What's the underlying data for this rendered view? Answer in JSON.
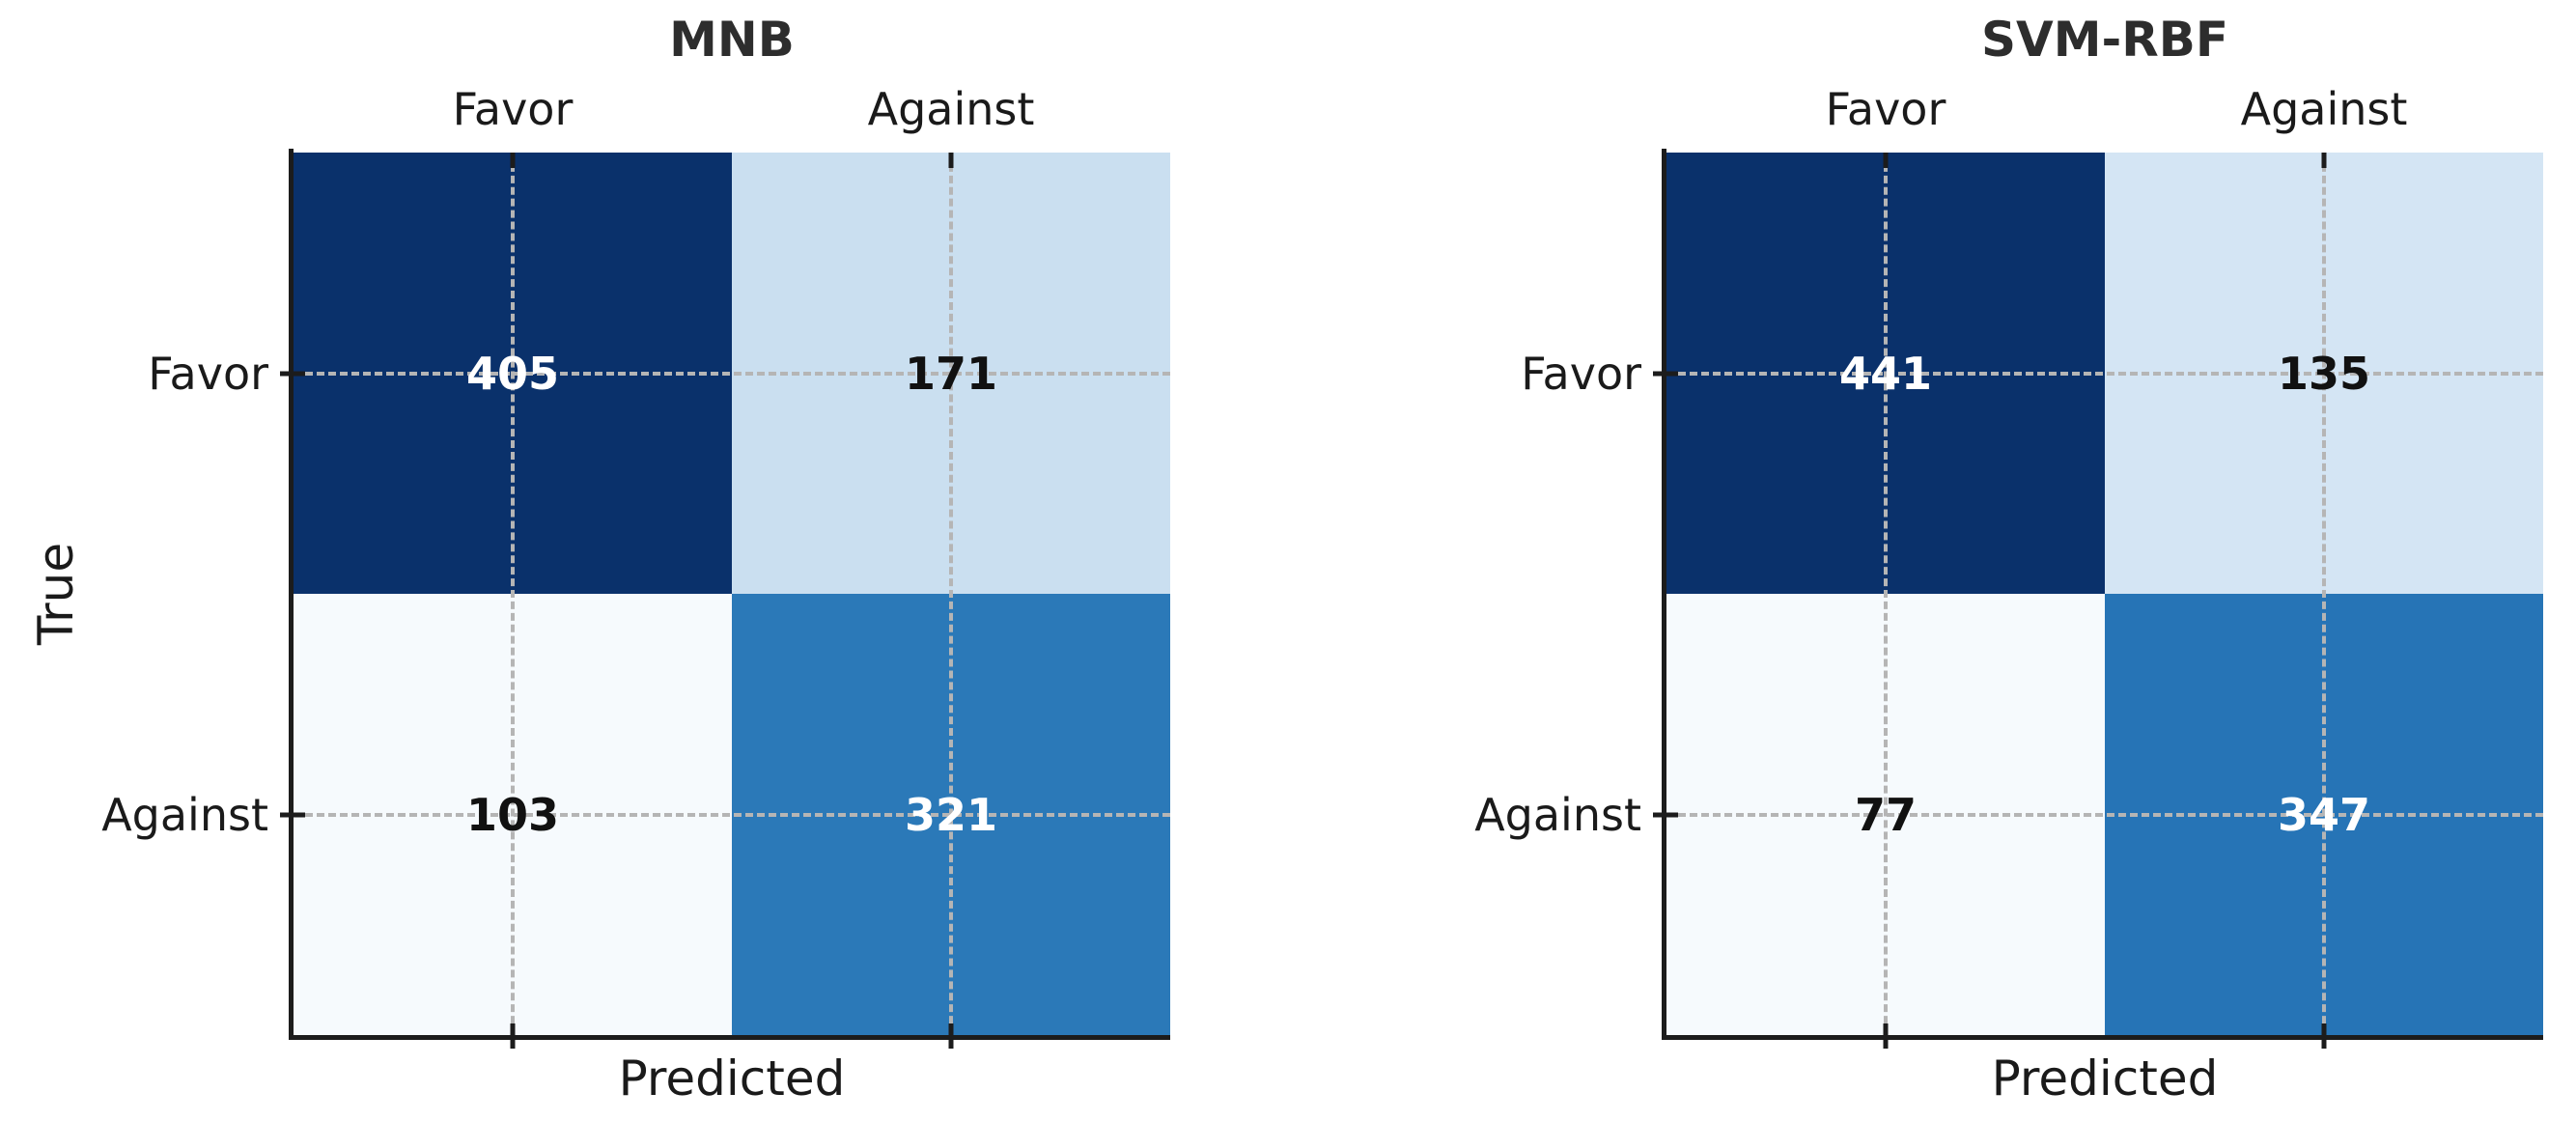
{
  "figure": {
    "background": "#ffffff",
    "spine_color": "#1c1c1c",
    "grid_color": "#b5b5b5",
    "label_color": "#1a1a1a",
    "title_color": "#2d2d2d",
    "colormap": "Blues"
  },
  "chart_data": [
    {
      "type": "heatmap",
      "title": "MNB",
      "xlabel": "Predicted",
      "ylabel": "True",
      "x_tick_labels": [
        "Favor",
        "Against"
      ],
      "y_tick_labels": [
        "Favor",
        "Against"
      ],
      "rows": [
        "Favor",
        "Against"
      ],
      "cols": [
        "Favor",
        "Against"
      ],
      "matrix": [
        [
          405,
          171
        ],
        [
          103,
          321
        ]
      ],
      "grid": true,
      "legend": false,
      "cells": [
        {
          "row": "Favor",
          "col": "Favor",
          "value": 405,
          "bg": "#0a316b",
          "fg": "#ffffff"
        },
        {
          "row": "Favor",
          "col": "Against",
          "value": 171,
          "bg": "#cadff0",
          "fg": "#111111"
        },
        {
          "row": "Against",
          "col": "Favor",
          "value": 103,
          "bg": "#f6fafd",
          "fg": "#111111"
        },
        {
          "row": "Against",
          "col": "Against",
          "value": 321,
          "bg": "#2b79b8",
          "fg": "#ffffff"
        }
      ]
    },
    {
      "type": "heatmap",
      "title": "SVM-RBF",
      "xlabel": "Predicted",
      "ylabel": "",
      "x_tick_labels": [
        "Favor",
        "Against"
      ],
      "y_tick_labels": [
        "Favor",
        "Against"
      ],
      "rows": [
        "Favor",
        "Against"
      ],
      "cols": [
        "Favor",
        "Against"
      ],
      "matrix": [
        [
          441,
          135
        ],
        [
          77,
          347
        ]
      ],
      "grid": true,
      "legend": false,
      "cells": [
        {
          "row": "Favor",
          "col": "Favor",
          "value": 441,
          "bg": "#0a316b",
          "fg": "#ffffff"
        },
        {
          "row": "Favor",
          "col": "Against",
          "value": 135,
          "bg": "#d4e5f4",
          "fg": "#111111"
        },
        {
          "row": "Against",
          "col": "Favor",
          "value": 77,
          "bg": "#f6fafd",
          "fg": "#111111"
        },
        {
          "row": "Against",
          "col": "Against",
          "value": 347,
          "bg": "#2674b6",
          "fg": "#ffffff"
        }
      ]
    }
  ]
}
